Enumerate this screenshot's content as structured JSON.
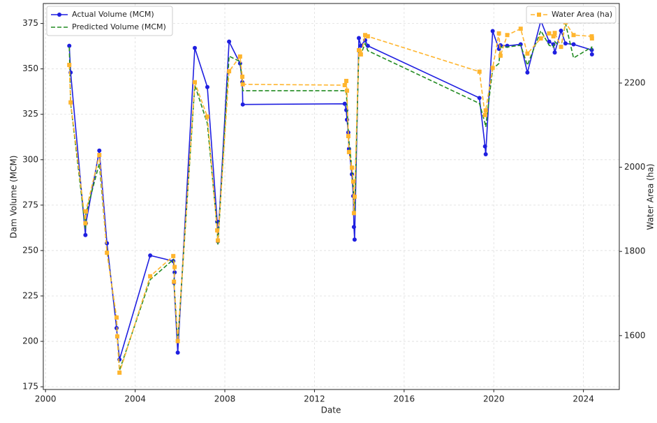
{
  "chart_data": {
    "type": "line",
    "xlabel": "Date",
    "ylabel": "Dam Volume (MCM)",
    "y2label": "Water Area (ha)",
    "x": [
      2001.06,
      2001.12,
      2001.78,
      2001.8,
      2002.4,
      2002.74,
      2003.17,
      2003.2,
      2003.3,
      2004.67,
      2005.7,
      2005.76,
      2005.73,
      2005.9,
      2006.66,
      2007.22,
      2007.66,
      2007.69,
      2008.19,
      2008.68,
      2008.78,
      2008.8,
      2013.35,
      2013.42,
      2013.45,
      2013.51,
      2013.54,
      2013.67,
      2013.73,
      2013.76,
      2013.79,
      2013.98,
      2014.07,
      2014.26,
      2014.38,
      2019.36,
      2019.61,
      2019.64,
      2019.95,
      2020.23,
      2020.3,
      2020.6,
      2021.2,
      2021.5,
      2022.1,
      2022.47,
      2022.66,
      2022.72,
      2023.0,
      2023.2,
      2023.56,
      2024.37,
      2024.38
    ],
    "series": [
      {
        "name": "Actual Volume (MCM)",
        "color": "#1f1fe0",
        "linestyle": "solid",
        "marker": "circle",
        "values": [
          362.7,
          348,
          258.5,
          265,
          305,
          254,
          207.3,
          202.7,
          190,
          247.3,
          244.2,
          238,
          232.3,
          193.8,
          361.5,
          340,
          265.8,
          255,
          365,
          353,
          342.7,
          330.4,
          330.8,
          327.3,
          322,
          315,
          306,
          292,
          280,
          263,
          256,
          367,
          362.7,
          365.8,
          362.7,
          334,
          307.3,
          303,
          370.8,
          361,
          363,
          362.7,
          363.5,
          348,
          376.5,
          365,
          363.5,
          359,
          371,
          364,
          363.5,
          360.4,
          358
        ]
      },
      {
        "name": "Predicted Volume (MCM)",
        "color": "#228b22",
        "linestyle": "dashed",
        "marker": "none",
        "values": [
          362,
          331,
          262,
          270,
          298,
          250,
          212,
          204,
          184,
          234,
          245,
          240,
          233,
          200,
          341,
          320,
          262,
          253,
          357,
          354,
          343,
          338,
          338,
          338,
          330,
          315,
          310,
          295,
          285,
          278,
          270,
          360,
          358,
          364,
          360,
          331,
          320,
          318,
          350,
          353,
          362,
          362,
          363,
          352,
          371,
          363,
          362,
          365,
          362,
          375,
          356,
          362,
          360
        ]
      },
      {
        "name": "Water Area (ha)",
        "color": "#ffb52e",
        "linestyle": "dashed",
        "marker": "square",
        "axis": "y2",
        "values": [
          2243,
          2154,
          1867,
          1895,
          2029,
          1797,
          1643,
          1598,
          1512,
          1741,
          1789,
          1763,
          1728,
          1587,
          2202,
          2120,
          1850,
          1826,
          2228,
          2263,
          2215,
          2197,
          2195,
          2205,
          2182,
          2074,
          2036,
          1999,
          1966,
          1891,
          1930,
          2278,
          2268,
          2314,
          2311,
          2227,
          2124,
          2135,
          2236,
          2318,
          2265,
          2314,
          2329,
          2270,
          2306,
          2318,
          2311,
          2319,
          2286,
          2344,
          2314,
          2311,
          2306
        ]
      }
    ],
    "xlim": [
      1999.9,
      2025.6
    ],
    "xticks": [
      2000,
      2004,
      2008,
      2012,
      2016,
      2020,
      2024
    ],
    "ylim": [
      173.5,
      386
    ],
    "yticks": [
      175,
      200,
      225,
      250,
      275,
      300,
      325,
      350,
      375
    ],
    "y2lim": [
      1472,
      2389
    ],
    "y2ticks": [
      1600,
      1800,
      2000,
      2200
    ],
    "grid": true,
    "legend": "upper left",
    "y2legend": "upper right"
  }
}
